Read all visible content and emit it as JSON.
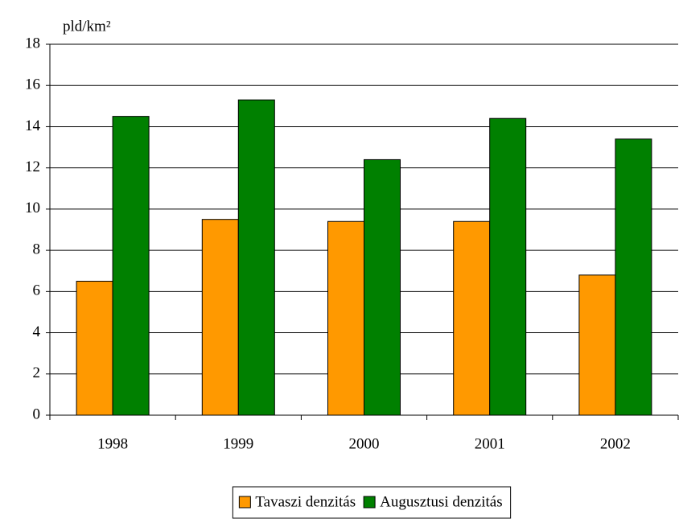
{
  "chart_data": {
    "type": "bar",
    "ylabel": "pld/km²",
    "categories": [
      "1998",
      "1999",
      "2000",
      "2001",
      "2002"
    ],
    "series": [
      {
        "name": "Tavaszi denzitás",
        "color": "#ff9900",
        "values": [
          6.5,
          9.5,
          9.4,
          9.4,
          6.8
        ]
      },
      {
        "name": "Augusztusi denzitás",
        "color": "#008000",
        "values": [
          14.5,
          15.3,
          12.4,
          14.4,
          13.4
        ]
      }
    ],
    "ylim": [
      0,
      18
    ],
    "yticks": [
      0,
      2,
      4,
      6,
      8,
      10,
      12,
      14,
      16,
      18
    ],
    "grid": true,
    "legend": "bottom"
  }
}
